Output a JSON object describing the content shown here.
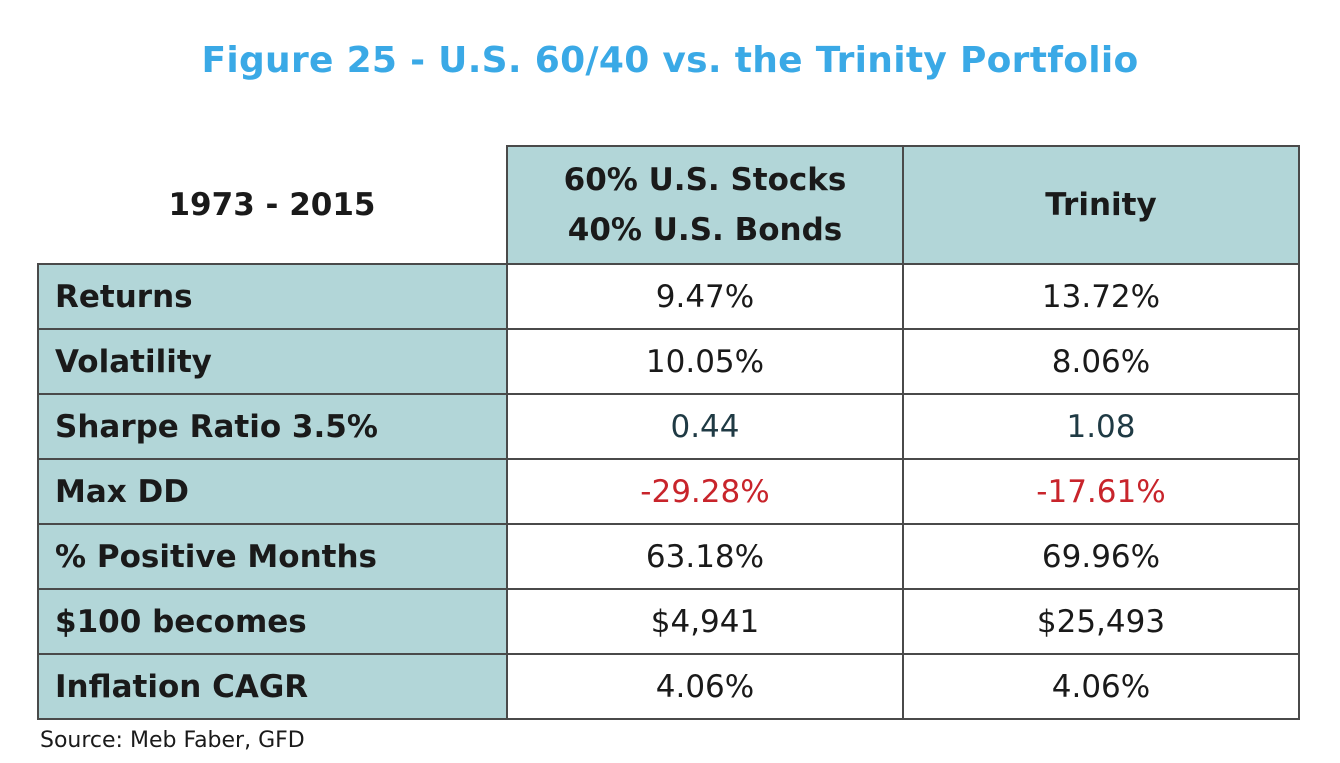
{
  "title": "Figure 25 - U.S. 60/40 vs. the Trinity Portfolio",
  "source": "Source: Meb Faber, GFD",
  "chart_data": {
    "type": "table",
    "title": "Figure 25 - U.S. 60/40 vs. the Trinity Portfolio",
    "period_label": "1973 - 2015",
    "columns": [
      {
        "line1": "60% U.S. Stocks",
        "line2": "40% U.S. Bonds"
      },
      {
        "line1": "Trinity",
        "line2": ""
      }
    ],
    "rows": [
      {
        "label": "Returns",
        "values": [
          "9.47%",
          "13.72%"
        ]
      },
      {
        "label": "Volatility",
        "values": [
          "10.05%",
          "8.06%"
        ]
      },
      {
        "label": "Sharpe Ratio 3.5%",
        "values": [
          "0.44",
          "1.08"
        ]
      },
      {
        "label": "Max DD",
        "values": [
          "-29.28%",
          "-17.61%"
        ]
      },
      {
        "label": "% Positive Months",
        "values": [
          "63.18%",
          "69.96%"
        ]
      },
      {
        "label": "$100 becomes",
        "values": [
          "$4,941",
          "$25,493"
        ]
      },
      {
        "label": "Inflation CAGR",
        "values": [
          "4.06%",
          "4.06%"
        ]
      }
    ],
    "colors": {
      "title": "#3aa9e6",
      "header_fill": "#b2d6d8",
      "negative": "#c8242b",
      "ratio": "#1f3a44",
      "border": "#4a4a4a"
    }
  }
}
